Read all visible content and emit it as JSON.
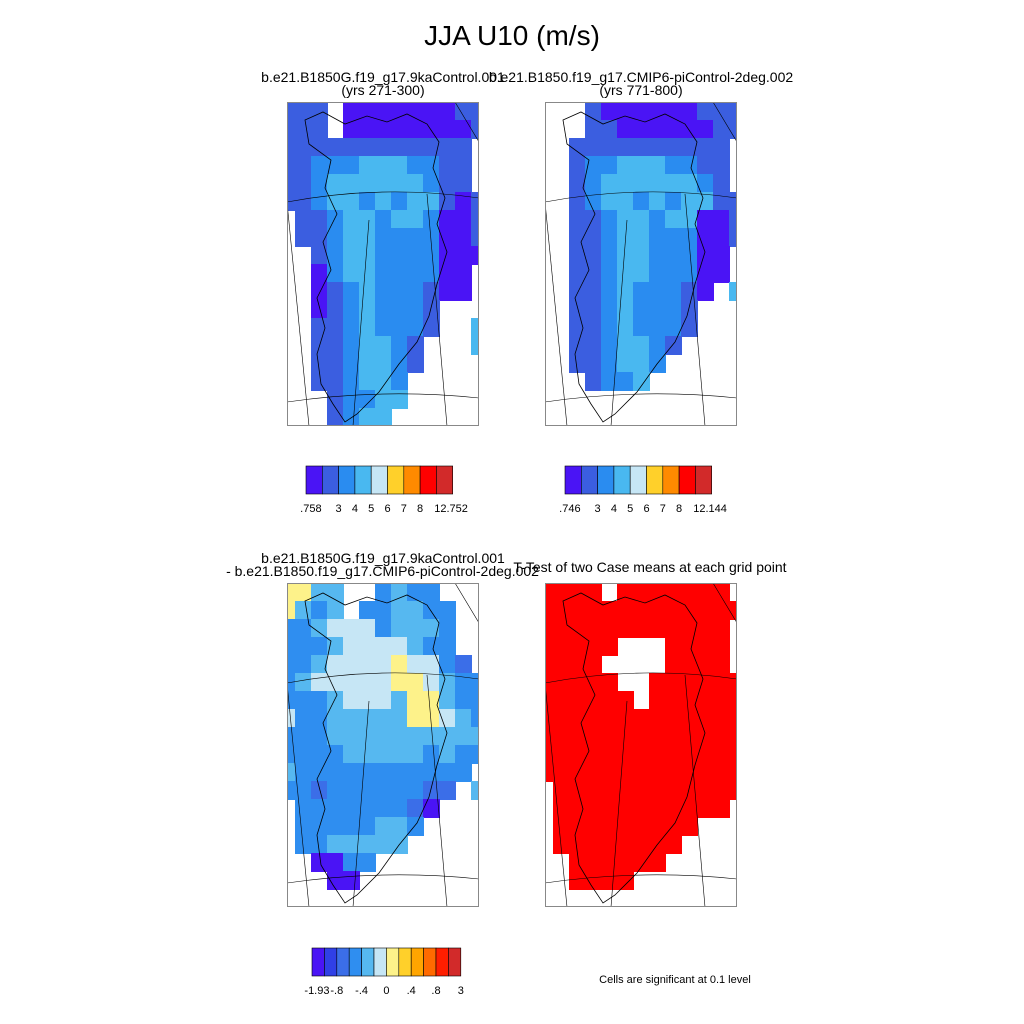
{
  "figure": {
    "title": "JJA U10 (m/s)"
  },
  "panels": [
    {
      "id": "a",
      "line1": "b.e21.B1850G.f19_g17.9kaControl.001",
      "line2": "(yrs 271-300)",
      "type": "field"
    },
    {
      "id": "b",
      "line1": "b.e21.B1850.f19_g17.CMIP6-piControl-2deg.002",
      "line2": "(yrs 771-800)",
      "type": "field"
    },
    {
      "id": "c",
      "line1": "b.e21.B1850G.f19_g17.9kaControl.001",
      "line2": "- b.e21.B1850.f19_g17.CMIP6-piControl-2deg.002",
      "type": "difference"
    },
    {
      "id": "d",
      "line1": "T-Test of two Case means at each grid point",
      "line2": "",
      "type": "significance"
    }
  ],
  "colorbars": [
    {
      "panel": "a",
      "labels": [
        ".758",
        "3",
        "4",
        "5",
        "6",
        "7",
        "8",
        "12.752"
      ],
      "colors": [
        "#4a14f5",
        "#3b5ee0",
        "#2a8cf0",
        "#49b8f0",
        "#c6e6f5",
        "#ffd02a",
        "#ff8a00",
        "#ff0000",
        "#d22a2a"
      ]
    },
    {
      "panel": "b",
      "labels": [
        ".746",
        "3",
        "4",
        "5",
        "6",
        "7",
        "8",
        "12.144"
      ],
      "colors": [
        "#4a14f5",
        "#3b5ee0",
        "#2a8cf0",
        "#49b8f0",
        "#c6e6f5",
        "#ffd02a",
        "#ff8a00",
        "#ff0000",
        "#d22a2a"
      ]
    },
    {
      "panel": "c",
      "labels": [
        "-1.93",
        "-.8",
        "-.4",
        "0",
        ".4",
        ".8",
        "3"
      ],
      "colors": [
        "#4a14f5",
        "#3040e6",
        "#3b6ee8",
        "#2f8ef0",
        "#56b8f0",
        "#c6e6f5",
        "#fdf28a",
        "#ffd02a",
        "#ffa500",
        "#ff6a00",
        "#ff1e00",
        "#d22a2a"
      ]
    }
  ],
  "significance": {
    "color": "#ff0000",
    "note": "Cells are significant at 0.1 level"
  },
  "map_colors": {
    "u_dark": "#4a14f5",
    "u_mid": "#3b5ee0",
    "u_blue": "#2a8cf0",
    "u_light": "#49b8f0",
    "d_darkest": "#4a14f5",
    "d_dark": "#3b6ee8",
    "d_mid": "#2f8ef0",
    "d_light": "#56b8f0",
    "d_pale": "#c6e6f5",
    "d_yellow": "#fdf28a"
  }
}
